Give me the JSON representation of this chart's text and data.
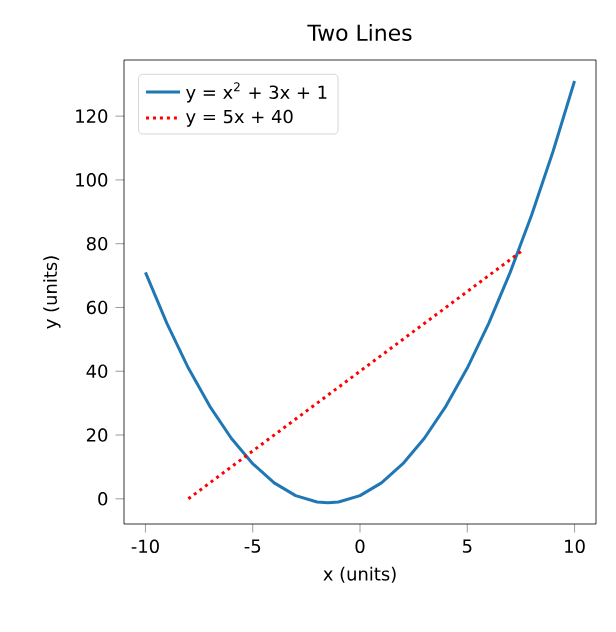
{
  "chart_data": {
    "type": "line",
    "title": "Two Lines",
    "xlabel": "x (units)",
    "ylabel": "y (units)",
    "series": [
      {
        "name": "y = x$^{2}$ + 3x + 1",
        "color": "#1f77b4",
        "line_style": "solid",
        "x": [
          -10,
          -9,
          -8,
          -7,
          -6,
          -5,
          -4,
          -3,
          -2,
          -1.5,
          -1,
          0,
          1,
          2,
          3,
          4,
          5,
          6,
          7,
          8,
          9,
          10
        ],
        "values": [
          71,
          55,
          41,
          29,
          19,
          11,
          5,
          1,
          -1,
          -1.25,
          -1,
          1,
          5,
          11,
          19,
          29,
          41,
          55,
          71,
          89,
          109,
          131
        ]
      },
      {
        "name": "y = 5x + 40",
        "color": "#ff0000",
        "line_style": "dotted",
        "x": [
          -8,
          7.5
        ],
        "values": [
          0,
          77.5
        ]
      }
    ],
    "xlim": [
      -11,
      11
    ],
    "ylim": [
      -7.9,
      137.6
    ],
    "xticks": [
      -10,
      -5,
      0,
      5,
      10
    ],
    "yticks": [
      0,
      20,
      40,
      60,
      80,
      100,
      120
    ],
    "legend": "top left",
    "grid": false,
    "marker": "none"
  }
}
